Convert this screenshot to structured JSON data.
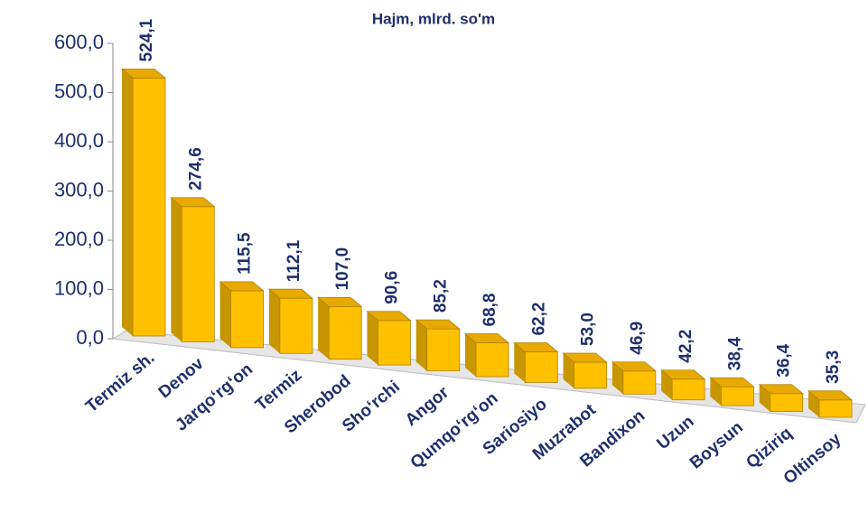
{
  "chart_data": {
    "type": "bar3d",
    "title": "Hajm, mlrd. so'm",
    "categories": [
      "Termiz sh.",
      "Denov",
      "Jarqo‘rg‘on",
      "Termiz",
      "Sherobod",
      "Sho‘rchi",
      "Angor",
      "Qumqo‘rg‘on",
      "Sariosiyo",
      "Muzrabot",
      "Bandixon",
      "Uzun",
      "Boysun",
      "Qiziriq",
      "Oltinsoy"
    ],
    "values": [
      524.1,
      274.6,
      115.5,
      112.1,
      107.0,
      90.6,
      85.2,
      68.8,
      62.2,
      53.0,
      46.9,
      42.2,
      38.4,
      36.4,
      35.3
    ],
    "value_labels": [
      "524,1",
      "274,6",
      "115,5",
      "112,1",
      "107,0",
      "90,6",
      "85,2",
      "68,8",
      "62,2",
      "53,0",
      "46,9",
      "42,2",
      "38,4",
      "36,4",
      "35,3"
    ],
    "color": "#ffc000",
    "ylim": [
      0,
      600
    ],
    "yticks": [
      {
        "value": 0,
        "label": "0,0"
      },
      {
        "value": 100,
        "label": "100,0"
      },
      {
        "value": 200,
        "label": "200,0"
      },
      {
        "value": 300,
        "label": "300,0"
      },
      {
        "value": 400,
        "label": "400,0"
      },
      {
        "value": 500,
        "label": "500,0"
      },
      {
        "value": 600,
        "label": "600,0"
      }
    ]
  }
}
